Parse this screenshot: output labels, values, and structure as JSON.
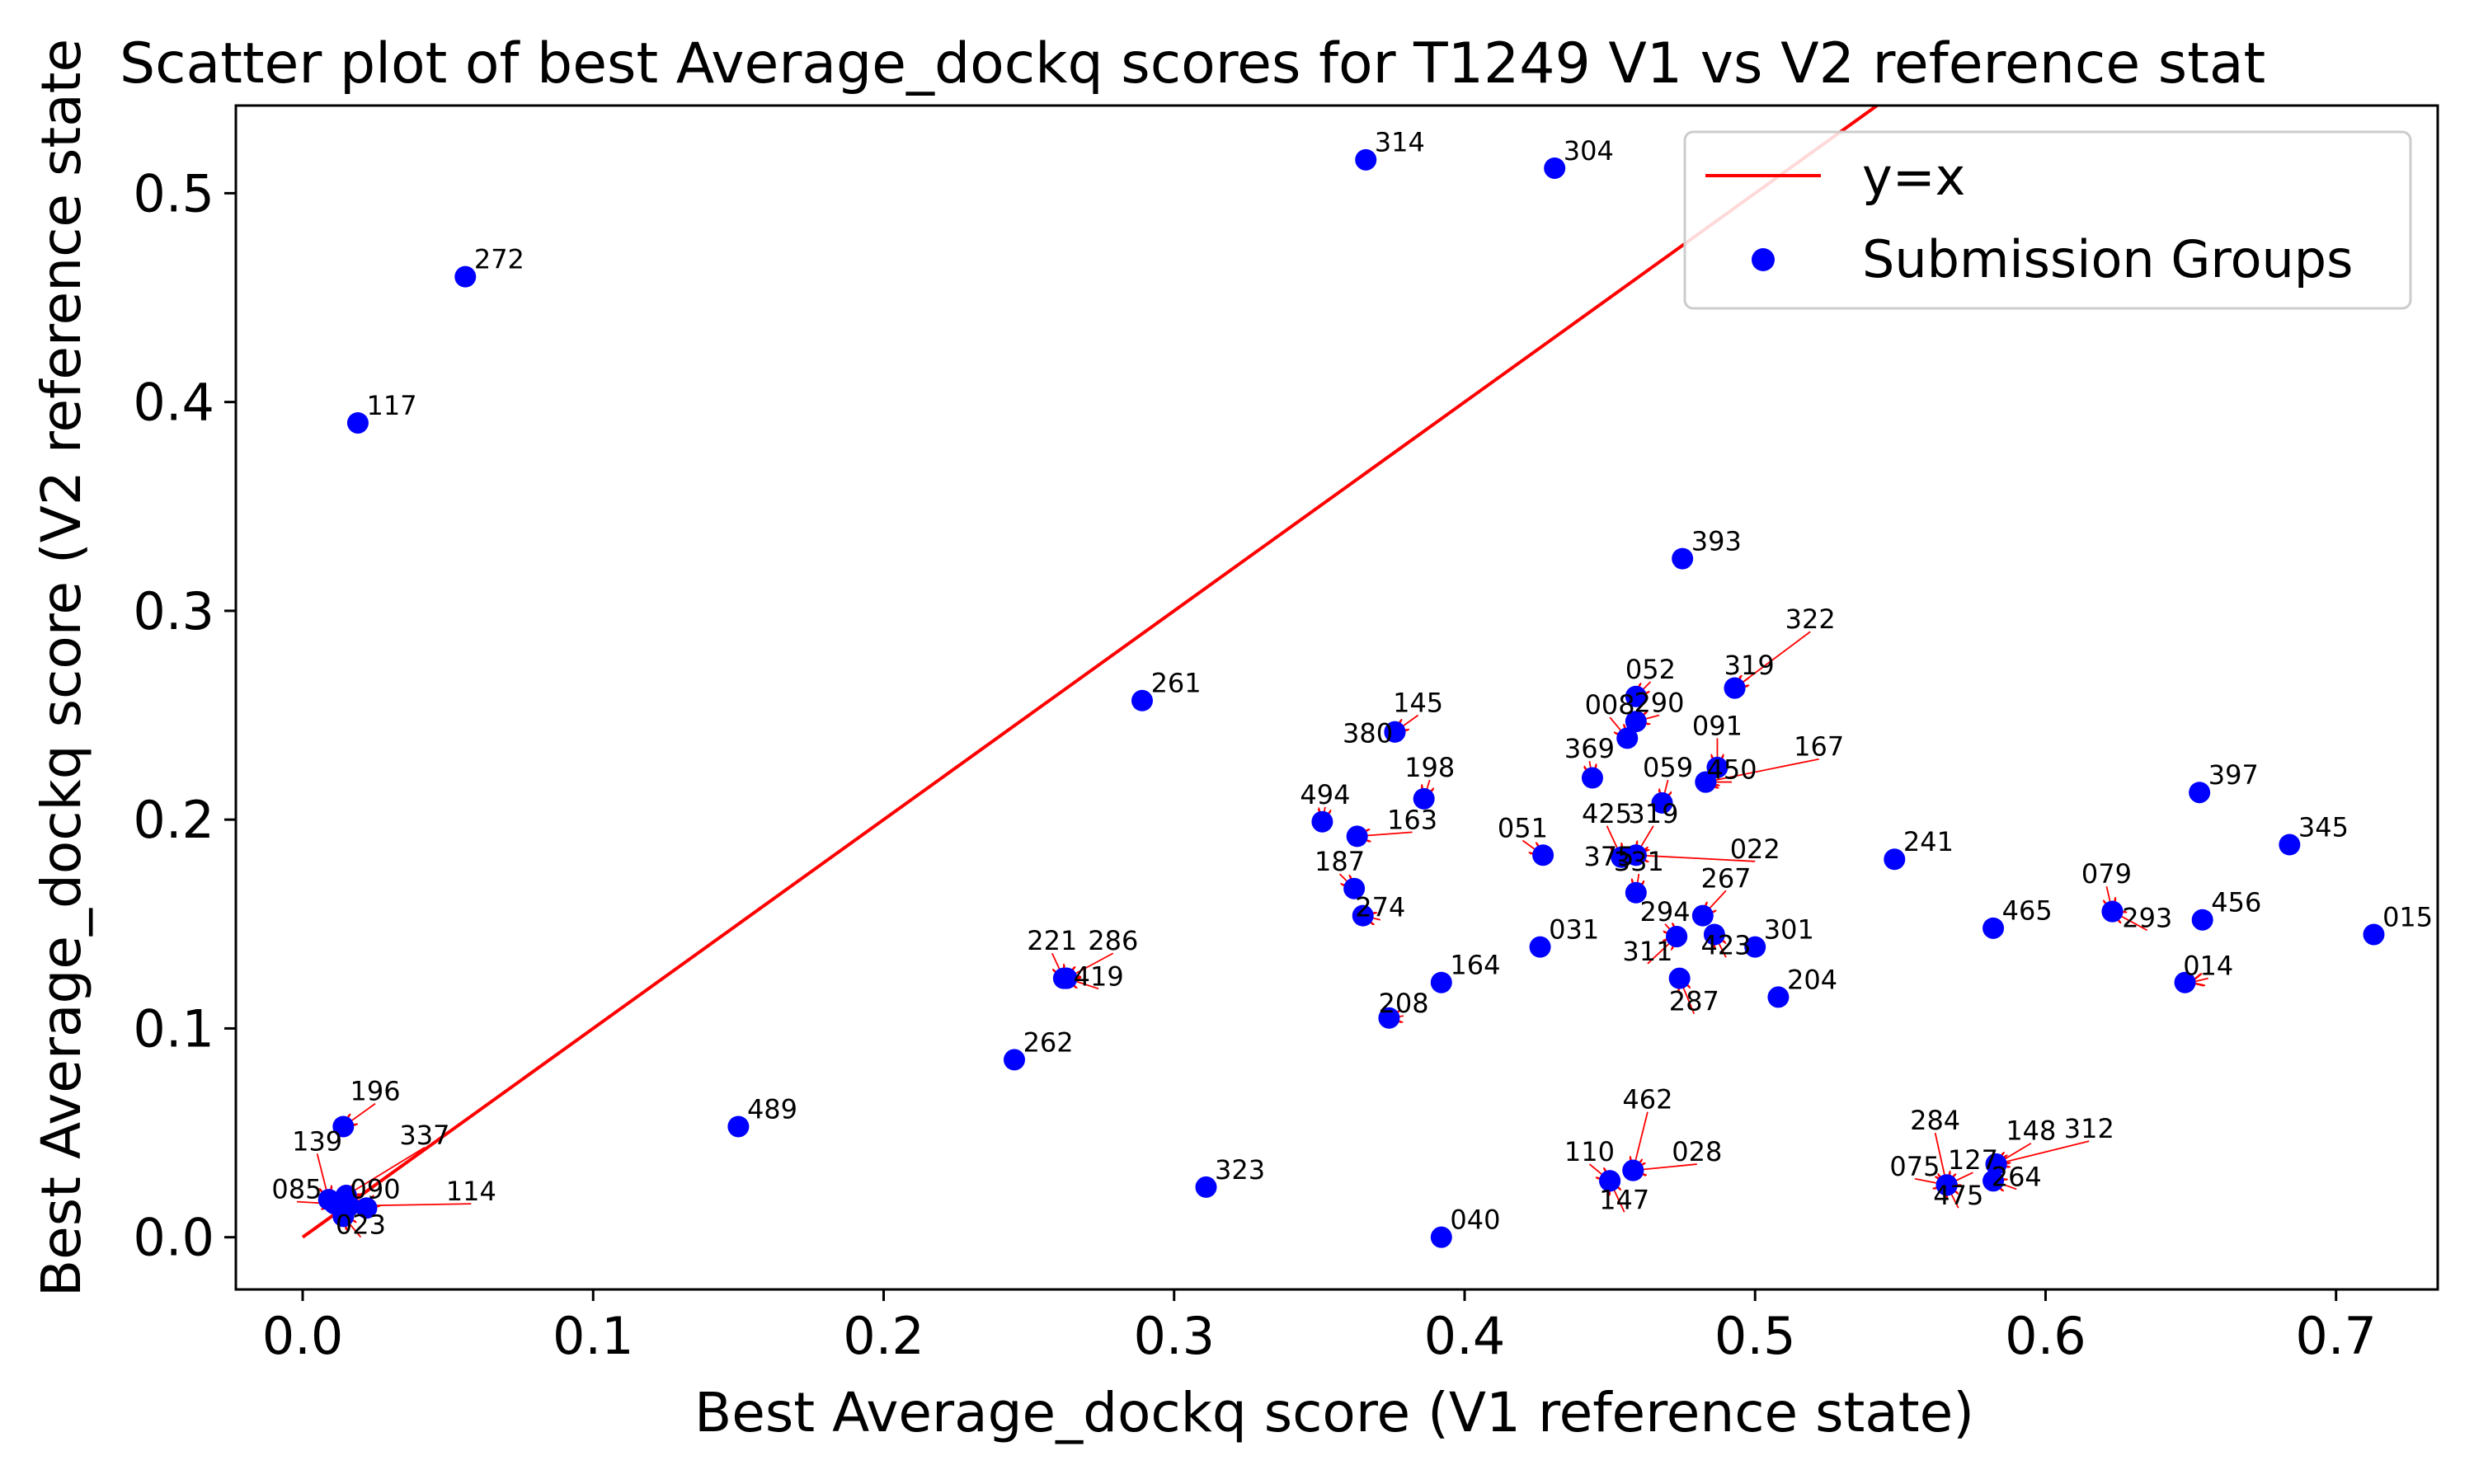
{
  "chart_data": {
    "type": "scatter",
    "title": "Scatter plot of best Average_dockq scores for T1249 V1 vs V2 reference stat",
    "xlabel": "Best Average_dockq score (V1 reference state)",
    "ylabel": "Best Average_dockq score (V2 reference state",
    "xlim": [
      -0.023,
      0.735
    ],
    "ylim": [
      -0.025,
      0.542
    ],
    "xticks": [
      "0.0",
      "0.1",
      "0.2",
      "0.3",
      "0.4",
      "0.5",
      "0.6",
      "0.7"
    ],
    "yticks": [
      "0.0",
      "0.1",
      "0.2",
      "0.3",
      "0.4",
      "0.5"
    ],
    "grid": false,
    "legend_position": "top-right",
    "reference_line": {
      "name": "y=x",
      "color": "#ff0000"
    },
    "series": [
      {
        "name": "Submission Groups",
        "color": "#0000ff",
        "points": [
          {
            "label": "314",
            "x": 0.366,
            "y": 0.516
          },
          {
            "label": "304",
            "x": 0.431,
            "y": 0.512
          },
          {
            "label": "272",
            "x": 0.056,
            "y": 0.46
          },
          {
            "label": "117",
            "x": 0.019,
            "y": 0.39
          },
          {
            "label": "393",
            "x": 0.475,
            "y": 0.325
          },
          {
            "label": "261",
            "x": 0.289,
            "y": 0.257
          },
          {
            "label": "319",
            "x": 0.493,
            "y": 0.263
          },
          {
            "label": "052",
            "x": 0.459,
            "y": 0.259
          },
          {
            "label": "380",
            "x": 0.376,
            "y": 0.242
          },
          {
            "label": "290",
            "x": 0.459,
            "y": 0.247
          },
          {
            "label": "008",
            "x": 0.456,
            "y": 0.239
          },
          {
            "label": "091",
            "x": 0.487,
            "y": 0.225
          },
          {
            "label": "450",
            "x": 0.483,
            "y": 0.218
          },
          {
            "label": "369",
            "x": 0.444,
            "y": 0.22
          },
          {
            "label": "198",
            "x": 0.386,
            "y": 0.21
          },
          {
            "label": "059",
            "x": 0.468,
            "y": 0.208
          },
          {
            "label": "397",
            "x": 0.653,
            "y": 0.213
          },
          {
            "label": "494",
            "x": 0.351,
            "y": 0.199
          },
          {
            "label": "163",
            "x": 0.363,
            "y": 0.192
          },
          {
            "label": "345",
            "x": 0.684,
            "y": 0.188
          },
          {
            "label": "051",
            "x": 0.427,
            "y": 0.183
          },
          {
            "label": "425",
            "x": 0.454,
            "y": 0.182
          },
          {
            "label": "375",
            "x": 0.459,
            "y": 0.183
          },
          {
            "label": "241",
            "x": 0.548,
            "y": 0.181
          },
          {
            "label": "187",
            "x": 0.362,
            "y": 0.167
          },
          {
            "label": "331",
            "x": 0.459,
            "y": 0.165
          },
          {
            "label": "079",
            "x": 0.623,
            "y": 0.156
          },
          {
            "label": "267",
            "x": 0.482,
            "y": 0.154
          },
          {
            "label": "274",
            "x": 0.365,
            "y": 0.154
          },
          {
            "label": "456",
            "x": 0.654,
            "y": 0.152
          },
          {
            "label": "465",
            "x": 0.582,
            "y": 0.148
          },
          {
            "label": "015",
            "x": 0.713,
            "y": 0.145
          },
          {
            "label": "294",
            "x": 0.473,
            "y": 0.144
          },
          {
            "label": "423",
            "x": 0.486,
            "y": 0.145
          },
          {
            "label": "301",
            "x": 0.5,
            "y": 0.139
          },
          {
            "label": "031",
            "x": 0.426,
            "y": 0.139
          },
          {
            "label": "221",
            "x": 0.262,
            "y": 0.124
          },
          {
            "label": "287",
            "x": 0.474,
            "y": 0.124
          },
          {
            "label": "014",
            "x": 0.648,
            "y": 0.122
          },
          {
            "label": "164",
            "x": 0.392,
            "y": 0.122
          },
          {
            "label": "204",
            "x": 0.508,
            "y": 0.115
          },
          {
            "label": "208",
            "x": 0.374,
            "y": 0.105
          },
          {
            "label": "262",
            "x": 0.245,
            "y": 0.085
          },
          {
            "label": "196",
            "x": 0.014,
            "y": 0.053
          },
          {
            "label": "489",
            "x": 0.15,
            "y": 0.053
          },
          {
            "label": "462",
            "x": 0.458,
            "y": 0.032
          },
          {
            "label": "148",
            "x": 0.583,
            "y": 0.035
          },
          {
            "label": "127",
            "x": 0.566,
            "y": 0.025
          },
          {
            "label": "110",
            "x": 0.45,
            "y": 0.027
          },
          {
            "label": "264",
            "x": 0.582,
            "y": 0.027
          },
          {
            "label": "323",
            "x": 0.311,
            "y": 0.024
          },
          {
            "label": "337",
            "x": 0.015,
            "y": 0.02
          },
          {
            "label": "090",
            "x": 0.022,
            "y": 0.014
          },
          {
            "label": "085",
            "x": 0.011,
            "y": 0.016
          },
          {
            "label": "023",
            "x": 0.014,
            "y": 0.01
          },
          {
            "label": "040",
            "x": 0.392,
            "y": 0.0
          },
          {
            "label": "139",
            "x": 0.009,
            "y": 0.018
          },
          {
            "label": "114",
            "x": 0.016,
            "y": 0.015
          },
          {
            "label": "286",
            "x": 0.263,
            "y": 0.124
          },
          {
            "label": "419",
            "x": 0.263,
            "y": 0.124
          },
          {
            "label": "145",
            "x": 0.376,
            "y": 0.242
          },
          {
            "label": "322",
            "x": 0.493,
            "y": 0.263
          },
          {
            "label": "167",
            "x": 0.483,
            "y": 0.218
          },
          {
            "label": "022",
            "x": 0.459,
            "y": 0.183
          },
          {
            "label": "311",
            "x": 0.473,
            "y": 0.144
          },
          {
            "label": "293",
            "x": 0.623,
            "y": 0.156
          },
          {
            "label": "028",
            "x": 0.458,
            "y": 0.032
          },
          {
            "label": "147",
            "x": 0.45,
            "y": 0.027
          },
          {
            "label": "284",
            "x": 0.566,
            "y": 0.025
          },
          {
            "label": "075",
            "x": 0.566,
            "y": 0.025
          },
          {
            "label": "475",
            "x": 0.566,
            "y": 0.025
          },
          {
            "label": "312",
            "x": 0.583,
            "y": 0.035
          }
        ]
      }
    ],
    "annotations": [
      {
        "text": "314",
        "x": 0.369,
        "y": 0.52
      },
      {
        "text": "304",
        "x": 0.434,
        "y": 0.516
      },
      {
        "text": "272",
        "x": 0.059,
        "y": 0.464
      },
      {
        "text": "117",
        "x": 0.022,
        "y": 0.394
      },
      {
        "text": "393",
        "x": 0.478,
        "y": 0.329
      },
      {
        "text": "261",
        "x": 0.292,
        "y": 0.261
      },
      {
        "text": "397",
        "x": 0.656,
        "y": 0.217
      },
      {
        "text": "345",
        "x": 0.687,
        "y": 0.192
      },
      {
        "text": "241",
        "x": 0.551,
        "y": 0.185
      },
      {
        "text": "465",
        "x": 0.585,
        "y": 0.152
      },
      {
        "text": "015",
        "x": 0.716,
        "y": 0.149
      },
      {
        "text": "262",
        "x": 0.248,
        "y": 0.089
      },
      {
        "text": "489",
        "x": 0.153,
        "y": 0.057
      },
      {
        "text": "323",
        "x": 0.314,
        "y": 0.028
      },
      {
        "text": "040",
        "x": 0.395,
        "y": 0.004
      },
      {
        "text": "164",
        "x": 0.395,
        "y": 0.126
      },
      {
        "text": "031",
        "x": 0.429,
        "y": 0.143
      },
      {
        "text": "204",
        "x": 0.511,
        "y": 0.119
      },
      {
        "text": "301",
        "x": 0.503,
        "y": 0.143
      },
      {
        "text": "456",
        "x": 0.657,
        "y": 0.156
      },
      {
        "text": "014",
        "x": 0.65,
        "y": 0.122,
        "from_x": 0.656,
        "from_y": 0.124
      },
      {
        "text": "208",
        "x": 0.374,
        "y": 0.105,
        "from_x": 0.379,
        "from_y": 0.106
      },
      {
        "text": "198",
        "x": 0.386,
        "y": 0.21,
        "from_x": 0.388,
        "from_y": 0.219
      },
      {
        "text": "369",
        "x": 0.444,
        "y": 0.22,
        "from_x": 0.443,
        "from_y": 0.228
      },
      {
        "text": "059",
        "x": 0.468,
        "y": 0.208,
        "from_x": 0.47,
        "from_y": 0.219
      },
      {
        "text": "052",
        "x": 0.459,
        "y": 0.259,
        "from_x": 0.464,
        "from_y": 0.266
      },
      {
        "text": "145",
        "x": 0.376,
        "y": 0.242,
        "from_x": 0.384,
        "from_y": 0.25
      },
      {
        "text": "380",
        "x": 0.358,
        "y": 0.237
      },
      {
        "text": "494",
        "x": 0.351,
        "y": 0.199,
        "from_x": 0.352,
        "from_y": 0.206
      },
      {
        "text": "163",
        "x": 0.363,
        "y": 0.192,
        "from_x": 0.382,
        "from_y": 0.194
      },
      {
        "text": "187",
        "x": 0.362,
        "y": 0.167,
        "from_x": 0.357,
        "from_y": 0.174
      },
      {
        "text": "274",
        "x": 0.365,
        "y": 0.154,
        "from_x": 0.371,
        "from_y": 0.152
      },
      {
        "text": "221",
        "x": 0.262,
        "y": 0.124,
        "from_x": 0.258,
        "from_y": 0.136
      },
      {
        "text": "286",
        "x": 0.263,
        "y": 0.124,
        "from_x": 0.279,
        "from_y": 0.136
      },
      {
        "text": "419",
        "x": 0.263,
        "y": 0.124,
        "from_x": 0.274,
        "from_y": 0.119
      },
      {
        "text": "051",
        "x": 0.427,
        "y": 0.183,
        "from_x": 0.42,
        "from_y": 0.19
      },
      {
        "text": "425",
        "x": 0.454,
        "y": 0.182,
        "from_x": 0.449,
        "from_y": 0.197
      },
      {
        "text": "319",
        "x": 0.459,
        "y": 0.183,
        "from_x": 0.465,
        "from_y": 0.197
      },
      {
        "text": "375",
        "x": 0.441,
        "y": 0.178
      },
      {
        "text": "022",
        "x": 0.459,
        "y": 0.183,
        "from_x": 0.5,
        "from_y": 0.18
      },
      {
        "text": "331",
        "x": 0.459,
        "y": 0.165,
        "from_x": 0.46,
        "from_y": 0.174
      },
      {
        "text": "008",
        "x": 0.456,
        "y": 0.239,
        "from_x": 0.45,
        "from_y": 0.249
      },
      {
        "text": "290",
        "x": 0.459,
        "y": 0.247,
        "from_x": 0.467,
        "from_y": 0.25
      },
      {
        "text": "091",
        "x": 0.487,
        "y": 0.225,
        "from_x": 0.487,
        "from_y": 0.239
      },
      {
        "text": "450",
        "x": 0.483,
        "y": 0.218,
        "from_x": 0.492,
        "from_y": 0.218
      },
      {
        "text": "167",
        "x": 0.483,
        "y": 0.218,
        "from_x": 0.522,
        "from_y": 0.229
      },
      {
        "text": "322",
        "x": 0.493,
        "y": 0.263,
        "from_x": 0.519,
        "from_y": 0.29
      },
      {
        "text": "319",
        "x": 0.493,
        "y": 0.263,
        "from_x": 0.498,
        "from_y": 0.268
      },
      {
        "text": "267",
        "x": 0.482,
        "y": 0.154,
        "from_x": 0.49,
        "from_y": 0.166
      },
      {
        "text": "294",
        "x": 0.473,
        "y": 0.144,
        "from_x": 0.469,
        "from_y": 0.15
      },
      {
        "text": "311",
        "x": 0.473,
        "y": 0.144,
        "from_x": 0.463,
        "from_y": 0.131
      },
      {
        "text": "423",
        "x": 0.486,
        "y": 0.145,
        "from_x": 0.49,
        "from_y": 0.134
      },
      {
        "text": "287",
        "x": 0.474,
        "y": 0.124,
        "from_x": 0.479,
        "from_y": 0.107
      },
      {
        "text": "079",
        "x": 0.623,
        "y": 0.156,
        "from_x": 0.621,
        "from_y": 0.168
      },
      {
        "text": "293",
        "x": 0.623,
        "y": 0.156,
        "from_x": 0.635,
        "from_y": 0.147
      },
      {
        "text": "196",
        "x": 0.014,
        "y": 0.053,
        "from_x": 0.025,
        "from_y": 0.064
      },
      {
        "text": "139",
        "x": 0.009,
        "y": 0.018,
        "from_x": 0.005,
        "from_y": 0.04
      },
      {
        "text": "337",
        "x": 0.015,
        "y": 0.02,
        "from_x": 0.042,
        "from_y": 0.043
      },
      {
        "text": "085",
        "x": 0.011,
        "y": 0.016,
        "from_x": -0.002,
        "from_y": 0.017
      },
      {
        "text": "090",
        "x": 0.022,
        "y": 0.014,
        "from_x": 0.025,
        "from_y": 0.017
      },
      {
        "text": "114",
        "x": 0.016,
        "y": 0.015,
        "from_x": 0.058,
        "from_y": 0.016
      },
      {
        "text": "023",
        "x": 0.014,
        "y": 0.01,
        "from_x": 0.02,
        "from_y": 0.0
      },
      {
        "text": "462",
        "x": 0.458,
        "y": 0.032,
        "from_x": 0.463,
        "from_y": 0.06
      },
      {
        "text": "110",
        "x": 0.45,
        "y": 0.027,
        "from_x": 0.443,
        "from_y": 0.035
      },
      {
        "text": "028",
        "x": 0.458,
        "y": 0.032,
        "from_x": 0.48,
        "from_y": 0.035
      },
      {
        "text": "147",
        "x": 0.45,
        "y": 0.027,
        "from_x": 0.455,
        "from_y": 0.012
      },
      {
        "text": "284",
        "x": 0.566,
        "y": 0.025,
        "from_x": 0.562,
        "from_y": 0.05
      },
      {
        "text": "148",
        "x": 0.583,
        "y": 0.035,
        "from_x": 0.595,
        "from_y": 0.045
      },
      {
        "text": "312",
        "x": 0.583,
        "y": 0.035,
        "from_x": 0.615,
        "from_y": 0.046
      },
      {
        "text": "075",
        "x": 0.566,
        "y": 0.025,
        "from_x": 0.555,
        "from_y": 0.028
      },
      {
        "text": "127",
        "x": 0.566,
        "y": 0.025,
        "from_x": 0.575,
        "from_y": 0.031
      },
      {
        "text": "264",
        "x": 0.582,
        "y": 0.027,
        "from_x": 0.59,
        "from_y": 0.023
      },
      {
        "text": "475",
        "x": 0.566,
        "y": 0.025,
        "from_x": 0.57,
        "from_y": 0.014
      }
    ]
  }
}
